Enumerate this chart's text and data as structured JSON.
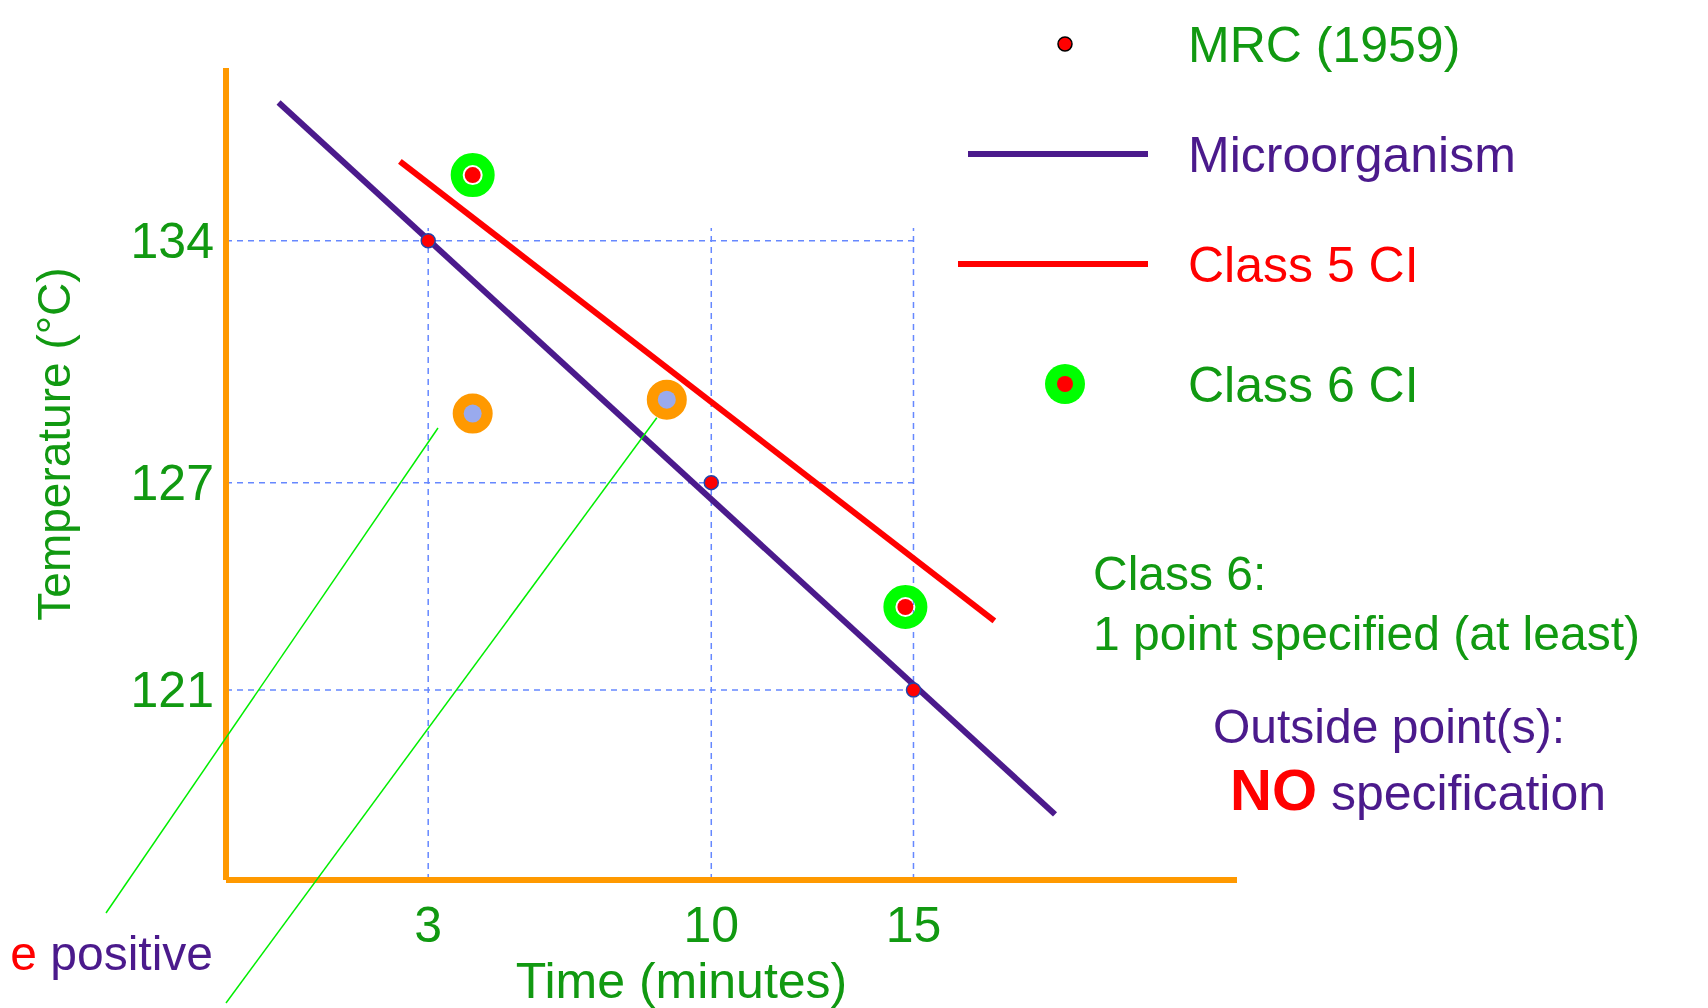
{
  "chart_data": {
    "type": "scatter",
    "xlabel": "Time (minutes)",
    "ylabel": "Temperature (°C)",
    "xlim": [
      -2,
      23
    ],
    "ylim": [
      115.5,
      139
    ],
    "xticks": [
      3,
      10,
      15
    ],
    "yticks": [
      121,
      127,
      134
    ],
    "grid": false,
    "legend": "top right",
    "series": [
      {
        "name": "Microorganism",
        "type": "line",
        "color": "#4b1a8c",
        "x": [
          -0.7,
          18.5
        ],
        "values": [
          138.0,
          117.4
        ]
      },
      {
        "name": "Class 5 CI",
        "type": "line",
        "color": "#ff0000",
        "x": [
          2.3,
          17.0
        ],
        "values": [
          136.3,
          123.0
        ]
      },
      {
        "name": "MRC (1959)",
        "type": "scatter",
        "color": "#ff0000",
        "x": [
          3,
          10,
          15
        ],
        "values": [
          134,
          127,
          121
        ],
        "marker": "circle"
      },
      {
        "name": "Class 6 CI",
        "type": "scatter",
        "color": "#00ff00",
        "x": [
          4.1,
          14.8
        ],
        "values": [
          135.9,
          123.4
        ],
        "marker": "circle"
      },
      {
        "type": "scatter",
        "color": "#ff0000",
        "x": [
          4.1,
          14.8
        ],
        "values": [
          135.9,
          123.4
        ],
        "marker": "circle"
      },
      {
        "type": "scatter",
        "color": "#ff9900",
        "x": [
          4.1,
          8.9
        ],
        "values": [
          129.0,
          129.4
        ],
        "marker": "circle"
      },
      {
        "type": "scatter",
        "color": "#99aaee",
        "x": [
          4.1,
          8.9
        ],
        "values": [
          129.0,
          129.4
        ],
        "marker": "circle"
      }
    ],
    "ref_lines": [
      {
        "axis": "x",
        "value": 3,
        "color": "#6688ff",
        "line_style": "dashed"
      },
      {
        "axis": "x",
        "value": 10,
        "color": "#6688ff",
        "line_style": "dashed"
      },
      {
        "axis": "x",
        "value": 15,
        "color": "#6688ff",
        "line_style": "dashed"
      },
      {
        "axis": "y",
        "value": 134,
        "color": "#6688ff",
        "line_style": "dashed"
      },
      {
        "axis": "y",
        "value": 127,
        "color": "#6688ff",
        "line_style": "dashed"
      },
      {
        "axis": "y",
        "value": 121,
        "color": "#6688ff",
        "line_style": "dashed"
      }
    ],
    "annotations": [
      "Class 6:",
      "1 point specified (at least)",
      "Outside point(s):",
      "NO specification",
      "e positive"
    ]
  }
}
